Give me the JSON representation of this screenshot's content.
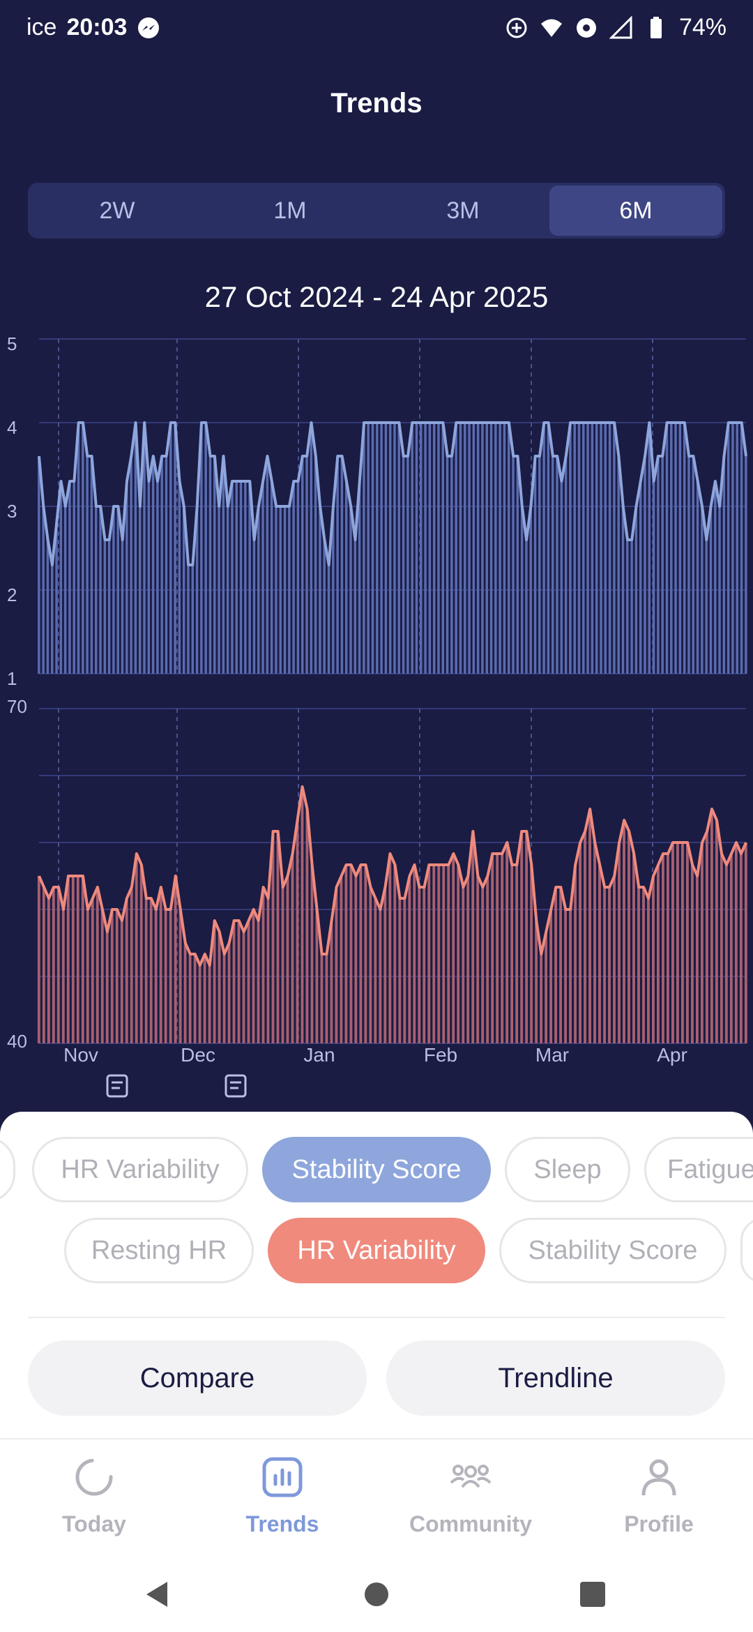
{
  "status": {
    "carrier": "ice",
    "time": "20:03",
    "battery": "74%",
    "icons": [
      "messenger-icon",
      "data-saver-icon",
      "wifi-5-icon",
      "hotspot-icon",
      "signal-icon",
      "battery-icon"
    ]
  },
  "header": {
    "title": "Trends"
  },
  "ranges": [
    {
      "label": "2W",
      "active": false
    },
    {
      "label": "1M",
      "active": false
    },
    {
      "label": "3M",
      "active": false
    },
    {
      "label": "6M",
      "active": true
    }
  ],
  "date_range": "27 Oct 2024 - 24 Apr 2025",
  "colors": {
    "background": "#1a1c43",
    "stability": "#8ea6dc",
    "hrv": "#ef8a7d",
    "accent": "#7e98db"
  },
  "chart_data": [
    {
      "type": "bar",
      "ylim": [
        1,
        5
      ],
      "yticks": [
        "5",
        "4",
        "3",
        "2",
        "1"
      ],
      "series": [
        {
          "name": "Stability Score",
          "values": [
            3.6,
            3.0,
            2.6,
            2.3,
            2.8,
            3.3,
            3.0,
            3.3,
            3.3,
            4.0,
            4.0,
            3.6,
            3.6,
            3.0,
            3.0,
            2.6,
            2.6,
            3.0,
            3.0,
            2.6,
            3.3,
            3.6,
            4.0,
            3.0,
            4.0,
            3.3,
            3.6,
            3.3,
            3.6,
            3.6,
            4.0,
            4.0,
            3.3,
            3.0,
            2.3,
            2.3,
            3.0,
            4.0,
            4.0,
            3.6,
            3.6,
            3.0,
            3.6,
            3.0,
            3.3,
            3.3,
            3.3,
            3.3,
            3.3,
            2.6,
            3.0,
            3.3,
            3.6,
            3.3,
            3.0,
            3.0,
            3.0,
            3.0,
            3.3,
            3.3,
            3.6,
            3.6,
            4.0,
            3.6,
            3.0,
            2.6,
            2.3,
            3.0,
            3.6,
            3.6,
            3.3,
            3.0,
            2.6,
            3.3,
            4.0,
            4.0,
            4.0,
            4.0,
            4.0,
            4.0,
            4.0,
            4.0,
            4.0,
            3.6,
            3.6,
            4.0,
            4.0,
            4.0,
            4.0,
            4.0,
            4.0,
            4.0,
            4.0,
            3.6,
            3.6,
            4.0,
            4.0,
            4.0,
            4.0,
            4.0,
            4.0,
            4.0,
            4.0,
            4.0,
            4.0,
            4.0,
            4.0,
            4.0,
            3.6,
            3.6,
            3.0,
            2.6,
            3.0,
            3.6,
            3.6,
            4.0,
            4.0,
            3.6,
            3.6,
            3.3,
            3.6,
            4.0,
            4.0,
            4.0,
            4.0,
            4.0,
            4.0,
            4.0,
            4.0,
            4.0,
            4.0,
            4.0,
            3.6,
            3.0,
            2.6,
            2.6,
            3.0,
            3.3,
            3.6,
            4.0,
            3.3,
            3.6,
            3.6,
            4.0,
            4.0,
            4.0,
            4.0,
            4.0,
            3.6,
            3.6,
            3.3,
            3.0,
            2.6,
            3.0,
            3.3,
            3.0,
            3.6,
            4.0,
            4.0,
            4.0,
            4.0,
            3.6
          ]
        }
      ]
    },
    {
      "type": "bar",
      "ylim": [
        40,
        70
      ],
      "yticks": [
        "70",
        "40"
      ],
      "xticks": [
        "Nov",
        "Dec",
        "Jan",
        "Feb",
        "Mar",
        "Apr"
      ],
      "series": [
        {
          "name": "HR Variability",
          "values": [
            55,
            54,
            53,
            54,
            54,
            52,
            55,
            55,
            55,
            55,
            52,
            53,
            54,
            52,
            50,
            52,
            52,
            51,
            53,
            54,
            57,
            56,
            53,
            53,
            52,
            54,
            52,
            52,
            55,
            52,
            49,
            48,
            48,
            47,
            48,
            47,
            51,
            50,
            48,
            49,
            51,
            51,
            50,
            51,
            52,
            51,
            54,
            53,
            59,
            59,
            54,
            55,
            57,
            60,
            63,
            61,
            56,
            52,
            48,
            48,
            51,
            54,
            55,
            56,
            56,
            55,
            56,
            56,
            54,
            53,
            52,
            54,
            57,
            56,
            53,
            53,
            55,
            56,
            54,
            54,
            56,
            56,
            56,
            56,
            56,
            57,
            56,
            54,
            55,
            59,
            55,
            54,
            55,
            57,
            57,
            57,
            58,
            56,
            56,
            59,
            59,
            56,
            51,
            48,
            50,
            52,
            54,
            54,
            52,
            52,
            56,
            58,
            59,
            61,
            58,
            56,
            54,
            54,
            55,
            58,
            60,
            59,
            57,
            54,
            54,
            53,
            55,
            56,
            57,
            57,
            58,
            58,
            58,
            58,
            56,
            55,
            58,
            59,
            61,
            60,
            57,
            56,
            57,
            58,
            57,
            58
          ]
        }
      ]
    }
  ],
  "chip_rows": [
    {
      "chips": [
        "HR Variability",
        "Stability Score",
        "Sleep",
        "Fatigue"
      ],
      "active": "Stability Score"
    },
    {
      "chips": [
        "Resting HR",
        "HR Variability",
        "Stability Score"
      ],
      "active": "HR Variability"
    }
  ],
  "actions": {
    "compare": "Compare",
    "trendline": "Trendline"
  },
  "tabs": [
    {
      "label": "Today",
      "icon": "today-ring-icon",
      "active": false
    },
    {
      "label": "Trends",
      "icon": "bar-chart-icon",
      "active": true
    },
    {
      "label": "Community",
      "icon": "community-icon",
      "active": false
    },
    {
      "label": "Profile",
      "icon": "profile-icon",
      "active": false
    }
  ],
  "system_nav": [
    "back-icon",
    "home-icon",
    "recents-icon"
  ]
}
